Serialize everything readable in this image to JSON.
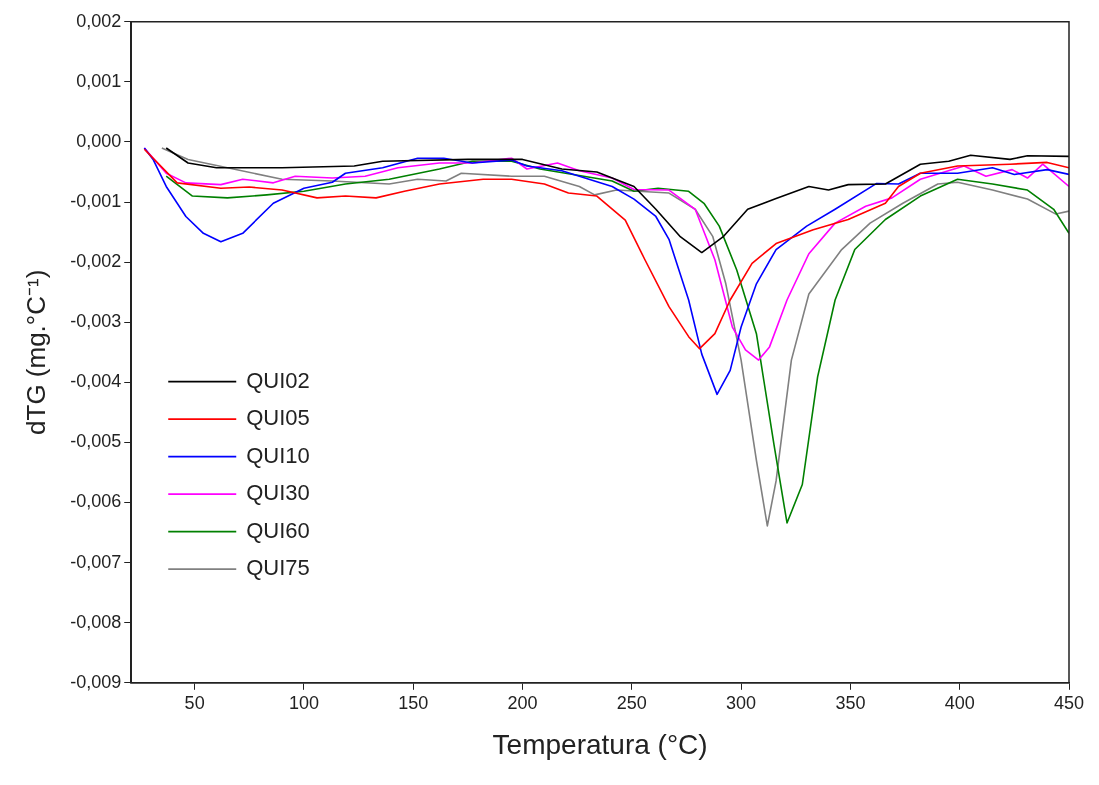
{
  "chart_data": {
    "type": "line",
    "xlabel": "Temperatura (°C)",
    "ylabel": "dTG (mg.°C⁻¹)",
    "xlim": [
      21,
      450
    ],
    "xticks": [
      50,
      100,
      150,
      200,
      250,
      300,
      350,
      400,
      450
    ],
    "ylim": [
      -0.009,
      0.002
    ],
    "yticks": [
      {
        "value": -0.009,
        "label": "-0,009"
      },
      {
        "value": -0.008,
        "label": "-0,008"
      },
      {
        "value": -0.007,
        "label": "-0,007"
      },
      {
        "value": -0.006,
        "label": "-0,006"
      },
      {
        "value": -0.005,
        "label": "-0,005"
      },
      {
        "value": -0.004,
        "label": "-0,004"
      },
      {
        "value": -0.003,
        "label": "-0,003"
      },
      {
        "value": -0.002,
        "label": "-0,002"
      },
      {
        "value": -0.001,
        "label": "-0,001"
      },
      {
        "value": 0,
        "label": "0,000"
      },
      {
        "value": 0.001,
        "label": "0,001"
      },
      {
        "value": 0.002,
        "label": "0,002"
      }
    ],
    "grid": false,
    "legend": "bottom left",
    "marker": "none",
    "line_style": "solid",
    "series": [
      {
        "name": "QUI02",
        "color": "#000000",
        "x": [
          37,
          47,
          60,
          90,
          123,
          136,
          175,
          200,
          218,
          234,
          251,
          261,
          272,
          282,
          292,
          303,
          316,
          331,
          340,
          349,
          366,
          382,
          395,
          405,
          423,
          431,
          450
        ],
        "values": [
          -0.0001,
          -0.00035,
          -0.00043,
          -0.00043,
          -0.0004,
          -0.00032,
          -0.00029,
          -0.00029,
          -0.00045,
          -0.0005,
          -0.00074,
          -0.00112,
          -0.00157,
          -0.00184,
          -0.00157,
          -0.00112,
          -0.00094,
          -0.00074,
          -0.0008,
          -0.00071,
          -0.0007,
          -0.00037,
          -0.00032,
          -0.00022,
          -0.00029,
          -0.00023,
          -0.00024
        ]
      },
      {
        "name": "QUI05",
        "color": "#ff0000",
        "x": [
          27,
          42,
          62,
          75,
          90,
          106,
          119,
          133,
          146,
          162,
          182,
          195,
          210,
          221,
          234,
          247,
          256,
          267,
          276,
          281,
          288,
          295,
          305,
          316,
          333,
          349,
          366,
          372,
          382,
          399,
          423,
          440,
          450
        ],
        "values": [
          -0.00012,
          -0.00068,
          -0.00077,
          -0.00075,
          -0.0008,
          -0.00093,
          -0.0009,
          -0.00093,
          -0.00082,
          -0.0007,
          -0.00062,
          -0.00062,
          -0.0007,
          -0.00085,
          -0.0009,
          -0.0013,
          -0.00196,
          -0.00274,
          -0.00324,
          -0.00344,
          -0.00319,
          -0.00263,
          -0.00202,
          -0.00169,
          -0.00146,
          -0.00129,
          -0.00102,
          -0.00074,
          -0.00052,
          -0.0004,
          -0.00037,
          -0.00034,
          -0.00043
        ]
      },
      {
        "name": "QUI10",
        "color": "#0000ff",
        "x": [
          27,
          31,
          37,
          46,
          54,
          62,
          72,
          86,
          100,
          113,
          119,
          136,
          152,
          164,
          177,
          195,
          202,
          218,
          241,
          251,
          261,
          267,
          276,
          282,
          289,
          295,
          300,
          307,
          316,
          330,
          343,
          362,
          372,
          382,
          399,
          415,
          425,
          440,
          450
        ],
        "values": [
          -0.0001,
          -0.00029,
          -0.00074,
          -0.00124,
          -0.00152,
          -0.00166,
          -0.00152,
          -0.00102,
          -0.00077,
          -0.00067,
          -0.00052,
          -0.00043,
          -0.00027,
          -0.00027,
          -0.00035,
          -0.0003,
          -0.0004,
          -0.00048,
          -0.00074,
          -0.00095,
          -0.00124,
          -0.00162,
          -0.00263,
          -0.00353,
          -0.0042,
          -0.0038,
          -0.00308,
          -0.00236,
          -0.00179,
          -0.0014,
          -0.00112,
          -0.00069,
          -0.0007,
          -0.00052,
          -0.00052,
          -0.00043,
          -0.00054,
          -0.00046,
          -0.00054
        ]
      },
      {
        "name": "QUI30",
        "color": "#ff00ff",
        "x": [
          27,
          37,
          46,
          62,
          72,
          86,
          96,
          113,
          128,
          143,
          162,
          177,
          195,
          202,
          216,
          226,
          241,
          251,
          267,
          279,
          288,
          296,
          302,
          308,
          313,
          321,
          331,
          343,
          357,
          369,
          382,
          402,
          412,
          424,
          431,
          438,
          450
        ],
        "values": [
          -0.0001,
          -0.00052,
          -0.00068,
          -0.00071,
          -0.00062,
          -0.00068,
          -0.00057,
          -0.0006,
          -0.00057,
          -0.00043,
          -0.00035,
          -0.00035,
          -0.00027,
          -0.00045,
          -0.00035,
          -0.00048,
          -0.0006,
          -0.00079,
          -0.0008,
          -0.00112,
          -0.00196,
          -0.00308,
          -0.00346,
          -0.00363,
          -0.00341,
          -0.00263,
          -0.00186,
          -0.00135,
          -0.00107,
          -0.00093,
          -0.00062,
          -0.0004,
          -0.00057,
          -0.00046,
          -0.0006,
          -0.00037,
          -0.00074
        ]
      },
      {
        "name": "QUI60",
        "color": "#008000",
        "x": [
          37,
          49,
          65,
          83,
          100,
          119,
          139,
          162,
          177,
          195,
          208,
          228,
          241,
          251,
          262,
          276,
          283,
          290,
          298,
          307,
          315,
          321,
          328,
          335,
          343,
          352,
          366,
          382,
          399,
          415,
          431,
          443,
          450
        ],
        "values": [
          -0.00057,
          -0.0009,
          -0.00093,
          -0.00088,
          -0.00082,
          -0.0007,
          -0.00062,
          -0.00045,
          -0.00032,
          -0.00032,
          -0.00045,
          -0.00057,
          -0.00065,
          -0.00082,
          -0.00077,
          -0.00082,
          -0.00102,
          -0.0014,
          -0.00213,
          -0.00319,
          -0.00503,
          -0.00634,
          -0.0057,
          -0.00391,
          -0.00263,
          -0.00179,
          -0.00129,
          -0.0009,
          -0.00062,
          -0.0007,
          -0.0008,
          -0.00112,
          -0.00152
        ]
      },
      {
        "name": "QUI75",
        "color": "#808080",
        "x": [
          35,
          47,
          65,
          90,
          113,
          139,
          152,
          165,
          172,
          195,
          210,
          226,
          233,
          243,
          267,
          279,
          287,
          293,
          300,
          307,
          312,
          316,
          323,
          331,
          346,
          359,
          374,
          390,
          399,
          415,
          431,
          444,
          450
        ],
        "values": [
          -0.0001,
          -0.00029,
          -0.00043,
          -0.00062,
          -0.00065,
          -0.0007,
          -0.00062,
          -0.00065,
          -0.00052,
          -0.00057,
          -0.00057,
          -0.00074,
          -0.00088,
          -0.0008,
          -0.00085,
          -0.00112,
          -0.00157,
          -0.00236,
          -0.00363,
          -0.0053,
          -0.00639,
          -0.00564,
          -0.00363,
          -0.00253,
          -0.00179,
          -0.00135,
          -0.00102,
          -0.0007,
          -0.00067,
          -0.0008,
          -0.00095,
          -0.0012,
          -0.00115
        ]
      }
    ]
  }
}
